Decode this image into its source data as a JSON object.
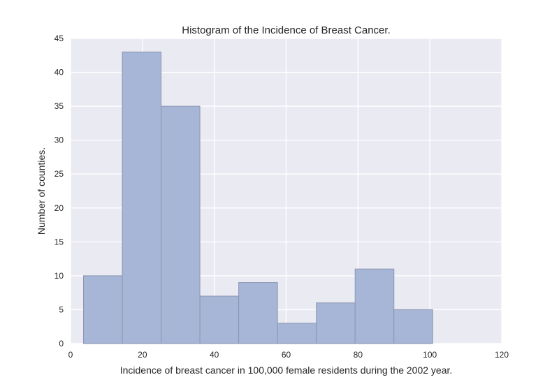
{
  "chart_data": {
    "type": "bar",
    "title": "Histogram of the Incidence of Breast Cancer.",
    "xlabel": "Incidence of breast cancer in 100,000 female residents during the 2002 year.",
    "ylabel": "Number of counties.",
    "xlim": [
      0,
      120
    ],
    "ylim": [
      0,
      45
    ],
    "xticks": [
      0,
      20,
      40,
      60,
      80,
      100,
      120
    ],
    "yticks": [
      0,
      5,
      10,
      15,
      20,
      25,
      30,
      35,
      40,
      45
    ],
    "grid": true,
    "bins": [
      {
        "start": 3.6,
        "end": 14.4,
        "count": 10
      },
      {
        "start": 14.4,
        "end": 25.2,
        "count": 43
      },
      {
        "start": 25.2,
        "end": 36.0,
        "count": 35
      },
      {
        "start": 36.0,
        "end": 46.8,
        "count": 7
      },
      {
        "start": 46.8,
        "end": 57.6,
        "count": 9
      },
      {
        "start": 57.6,
        "end": 68.4,
        "count": 3
      },
      {
        "start": 68.4,
        "end": 79.2,
        "count": 6
      },
      {
        "start": 79.2,
        "end": 90.0,
        "count": 11
      },
      {
        "start": 90.0,
        "end": 100.8,
        "count": 5
      }
    ],
    "colors": {
      "background": "#eaeaf2",
      "grid": "#ffffff",
      "bar_fill": "#a7b6d6",
      "bar_edge": "#8a96b2"
    }
  }
}
